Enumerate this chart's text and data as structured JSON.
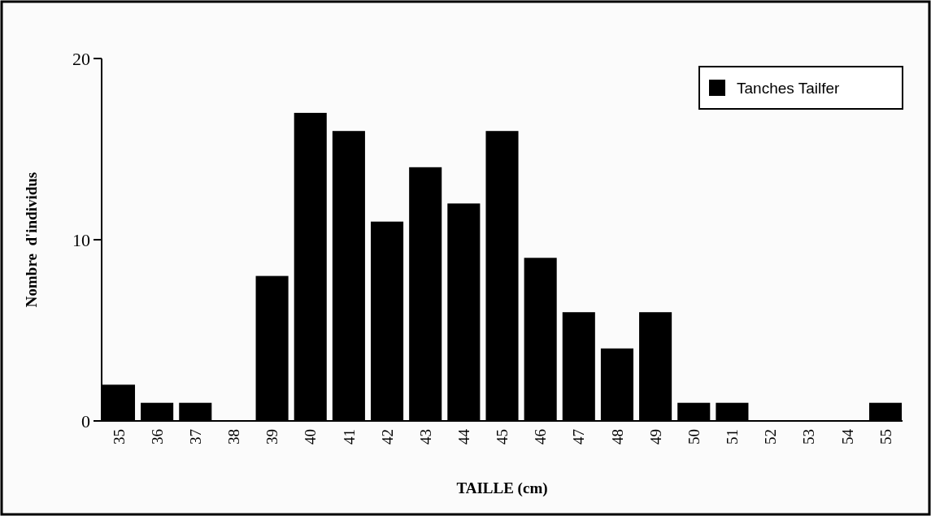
{
  "chart_data": {
    "type": "bar",
    "xlabel": "TAILLE (cm)",
    "ylabel": "Nombre  d'individus",
    "categories": [
      "35",
      "36",
      "37",
      "38",
      "39",
      "40",
      "41",
      "42",
      "43",
      "44",
      "45",
      "46",
      "47",
      "48",
      "49",
      "50",
      "51",
      "52",
      "53",
      "54",
      "55"
    ],
    "series": [
      {
        "name": "Tanches Tailfer",
        "color": "#000000",
        "values": [
          2,
          1,
          1,
          0,
          8,
          17,
          16,
          11,
          14,
          12,
          16,
          9,
          6,
          4,
          6,
          1,
          1,
          0,
          0,
          0,
          1
        ]
      }
    ],
    "ylim": [
      0,
      20
    ],
    "yticks": [
      0,
      10,
      20
    ],
    "grid": false,
    "legend": "top right"
  }
}
